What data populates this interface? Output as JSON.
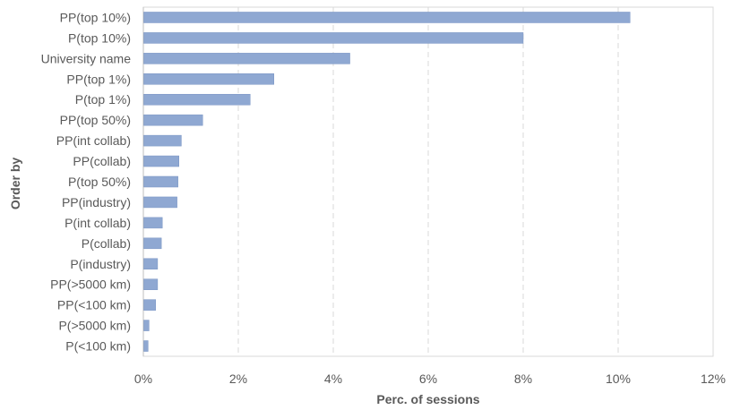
{
  "chart_data": {
    "type": "bar",
    "orientation": "horizontal",
    "categories": [
      "PP(top 10%)",
      "P(top 10%)",
      "University name",
      "PP(top 1%)",
      "P(top 1%)",
      "PP(top 50%)",
      "PP(int collab)",
      "PP(collab)",
      "P(top 50%)",
      "PP(industry)",
      "P(int collab)",
      "P(collab)",
      "P(industry)",
      "PP(>5000 km)",
      "PP(<100 km)",
      "P(>5000 km)",
      "P(<100 km)"
    ],
    "values": [
      10.25,
      8.0,
      4.35,
      2.75,
      2.25,
      1.25,
      0.8,
      0.75,
      0.73,
      0.71,
      0.4,
      0.38,
      0.3,
      0.3,
      0.26,
      0.12,
      0.1
    ],
    "xlabel": "Perc. of sessions",
    "ylabel": "Order by",
    "xlim": [
      0,
      12
    ],
    "xticks": [
      0,
      2,
      4,
      6,
      8,
      10,
      12
    ],
    "xtick_labels": [
      "0%",
      "2%",
      "4%",
      "6%",
      "8%",
      "10%",
      "12%"
    ],
    "grid": "vertical dashed",
    "legend": "none",
    "colors": {
      "bar": "#8FA8D2",
      "bar_border": "#7A95C4",
      "grid": "#D9D9D9",
      "axis": "#BFBFBF",
      "text": "#595959"
    }
  }
}
